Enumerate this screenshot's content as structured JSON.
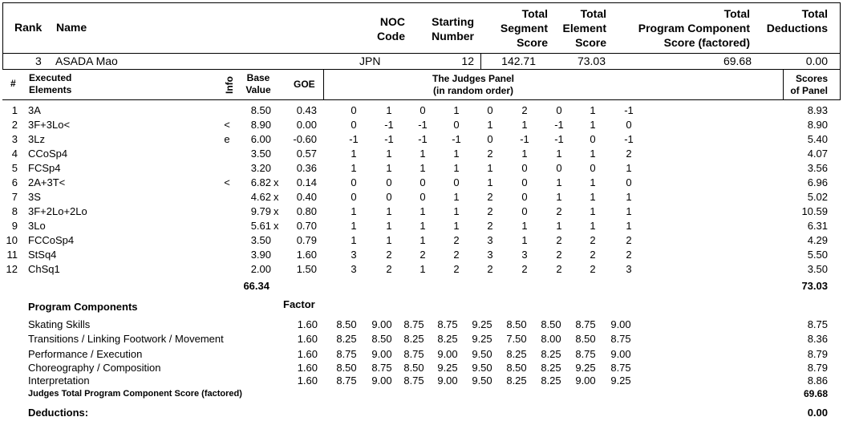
{
  "header": {
    "rank": "Rank",
    "name": "Name",
    "noc": [
      "NOC",
      "Code"
    ],
    "starting": [
      "Starting",
      "Number"
    ],
    "tss": [
      "Total",
      "Segment",
      "Score"
    ],
    "tes": [
      "Total",
      "Element",
      "Score"
    ],
    "pcs": [
      "Total",
      "Program Component",
      "Score (factored)"
    ],
    "ded": [
      "Total",
      "Deductions"
    ]
  },
  "skater": {
    "rank": "3",
    "name": "ASADA Mao",
    "noc": "JPN",
    "starting_number": "12",
    "total_segment_score": "142.71",
    "total_element_score": "73.03",
    "total_pcs": "69.68",
    "total_deductions": "0.00"
  },
  "elements_header": {
    "num": "#",
    "executed": [
      "Executed",
      "Elements"
    ],
    "info": "Info",
    "base": [
      "Base",
      "Value"
    ],
    "goe": "GOE",
    "judges": [
      "The Judges Panel",
      "(in random order)"
    ],
    "scores": [
      "Scores",
      "of Panel"
    ]
  },
  "elements": [
    {
      "n": "1",
      "el": "3A",
      "info": "",
      "bv": "8.50",
      "x": "",
      "goe": "0.43",
      "j": [
        "0",
        "1",
        "0",
        "1",
        "0",
        "2",
        "0",
        "1",
        "-1"
      ],
      "score": "8.93"
    },
    {
      "n": "2",
      "el": "3F+3Lo<",
      "info": "<",
      "bv": "8.90",
      "x": "",
      "goe": "0.00",
      "j": [
        "0",
        "-1",
        "-1",
        "0",
        "1",
        "1",
        "-1",
        "1",
        "0"
      ],
      "score": "8.90"
    },
    {
      "n": "3",
      "el": "3Lz",
      "info": "e",
      "bv": "6.00",
      "x": "",
      "goe": "-0.60",
      "j": [
        "-1",
        "-1",
        "-1",
        "-1",
        "0",
        "-1",
        "-1",
        "0",
        "-1"
      ],
      "score": "5.40"
    },
    {
      "n": "4",
      "el": "CCoSp4",
      "info": "",
      "bv": "3.50",
      "x": "",
      "goe": "0.57",
      "j": [
        "1",
        "1",
        "1",
        "1",
        "2",
        "1",
        "1",
        "1",
        "2"
      ],
      "score": "4.07"
    },
    {
      "n": "5",
      "el": "FCSp4",
      "info": "",
      "bv": "3.20",
      "x": "",
      "goe": "0.36",
      "j": [
        "1",
        "1",
        "1",
        "1",
        "1",
        "0",
        "0",
        "0",
        "1"
      ],
      "score": "3.56"
    },
    {
      "n": "6",
      "el": "2A+3T<",
      "info": "<",
      "bv": "6.82",
      "x": "x",
      "goe": "0.14",
      "j": [
        "0",
        "0",
        "0",
        "0",
        "1",
        "0",
        "1",
        "1",
        "0"
      ],
      "score": "6.96"
    },
    {
      "n": "7",
      "el": "3S",
      "info": "",
      "bv": "4.62",
      "x": "x",
      "goe": "0.40",
      "j": [
        "0",
        "0",
        "0",
        "1",
        "2",
        "0",
        "1",
        "1",
        "1"
      ],
      "score": "5.02"
    },
    {
      "n": "8",
      "el": "3F+2Lo+2Lo",
      "info": "",
      "bv": "9.79",
      "x": "x",
      "goe": "0.80",
      "j": [
        "1",
        "1",
        "1",
        "1",
        "2",
        "0",
        "2",
        "1",
        "1"
      ],
      "score": "10.59"
    },
    {
      "n": "9",
      "el": "3Lo",
      "info": "",
      "bv": "5.61",
      "x": "x",
      "goe": "0.70",
      "j": [
        "1",
        "1",
        "1",
        "1",
        "2",
        "1",
        "1",
        "1",
        "1"
      ],
      "score": "6.31"
    },
    {
      "n": "10",
      "el": "FCCoSp4",
      "info": "",
      "bv": "3.50",
      "x": "",
      "goe": "0.79",
      "j": [
        "1",
        "1",
        "1",
        "2",
        "3",
        "1",
        "2",
        "2",
        "2"
      ],
      "score": "4.29"
    },
    {
      "n": "11",
      "el": "StSq4",
      "info": "",
      "bv": "3.90",
      "x": "",
      "goe": "1.60",
      "j": [
        "3",
        "2",
        "2",
        "2",
        "3",
        "3",
        "2",
        "2",
        "2"
      ],
      "score": "5.50"
    },
    {
      "n": "12",
      "el": "ChSq1",
      "info": "",
      "bv": "2.00",
      "x": "",
      "goe": "1.50",
      "j": [
        "3",
        "2",
        "1",
        "2",
        "2",
        "2",
        "2",
        "2",
        "3"
      ],
      "score": "3.50"
    }
  ],
  "elements_total_bv": "66.34",
  "elements_total_score": "73.03",
  "pc_header": {
    "title": "Program Components",
    "factor": "Factor"
  },
  "components": [
    {
      "name": "Skating Skills",
      "factor": "1.60",
      "j": [
        "8.50",
        "9.00",
        "8.75",
        "8.75",
        "9.25",
        "8.50",
        "8.50",
        "8.75",
        "9.00"
      ],
      "score": "8.75"
    },
    {
      "name": "Transitions / Linking Footwork / Movement",
      "factor": "1.60",
      "j": [
        "8.25",
        "8.50",
        "8.25",
        "8.25",
        "9.25",
        "7.50",
        "8.00",
        "8.50",
        "8.75"
      ],
      "score": "8.36"
    },
    {
      "name": "Performance / Execution",
      "factor": "1.60",
      "j": [
        "8.75",
        "9.00",
        "8.75",
        "9.00",
        "9.50",
        "8.25",
        "8.25",
        "8.75",
        "9.00"
      ],
      "score": "8.79"
    },
    {
      "name": "Choreography / Composition",
      "factor": "1.60",
      "j": [
        "8.50",
        "8.75",
        "8.50",
        "9.25",
        "9.50",
        "8.50",
        "8.25",
        "9.25",
        "8.75"
      ],
      "score": "8.79"
    },
    {
      "name": "Interpretation",
      "factor": "1.60",
      "j": [
        "8.75",
        "9.00",
        "8.75",
        "9.00",
        "9.50",
        "8.25",
        "8.25",
        "9.00",
        "9.25"
      ],
      "score": "8.86"
    }
  ],
  "pcs_total_label": "Judges Total Program Component Score (factored)",
  "pcs_total": "69.68",
  "deductions_label": "Deductions:",
  "deductions_value": "0.00"
}
